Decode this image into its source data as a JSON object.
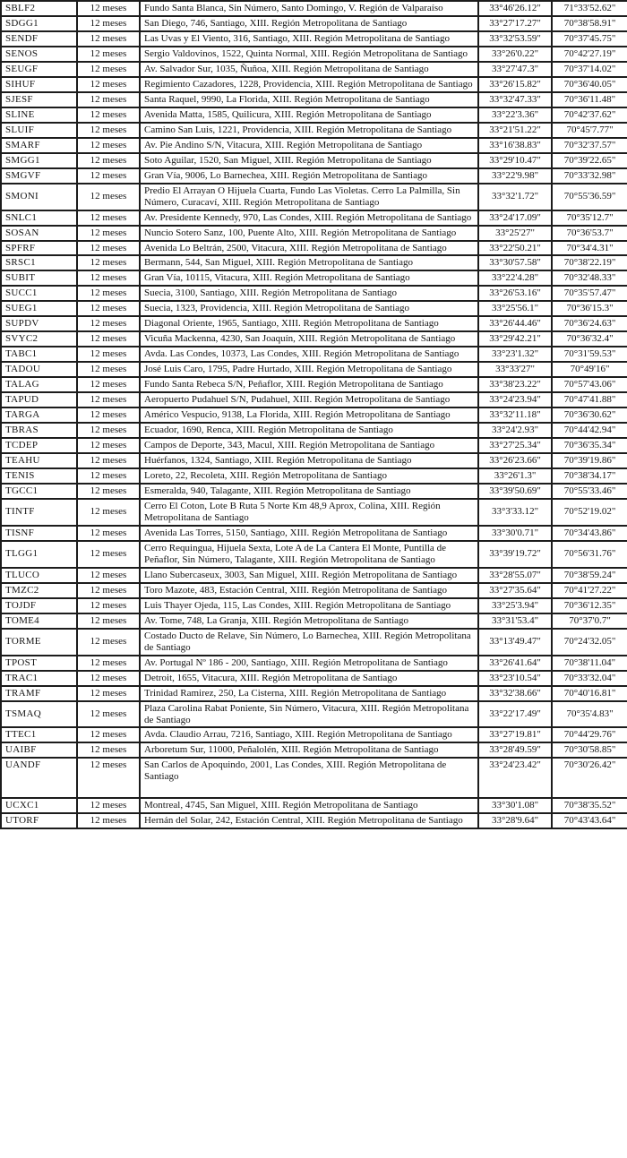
{
  "table": {
    "rows": [
      {
        "code": "SBLF2",
        "period": "12 meses",
        "address": "Fundo Santa Blanca, Sin Número, Santo Domingo, V. Región de Valparaíso",
        "latitude": "33°46'26.12\"",
        "longitude": "71°33'52.62\""
      },
      {
        "code": "SDGG1",
        "period": "12 meses",
        "address": "San Diego, 746, Santiago, XIII. Región Metropolitana de Santiago",
        "latitude": "33°27'17.27\"",
        "longitude": "70°38'58.91\""
      },
      {
        "code": "SENDF",
        "period": "12 meses",
        "address": "Las Uvas y El Viento, 316, Santiago, XIII. Región Metropolitana de Santiago",
        "latitude": "33°32'53.59\"",
        "longitude": "70°37'45.75\""
      },
      {
        "code": "SENOS",
        "period": "12 meses",
        "address": "Sergio Valdovinos, 1522, Quinta Normal, XIII. Región Metropolitana de Santiago",
        "latitude": "33°26'0.22\"",
        "longitude": "70°42'27.19\""
      },
      {
        "code": "SEUGF",
        "period": "12 meses",
        "address": "Av. Salvador Sur, 1035, Ñuñoa, XIII. Región Metropolitana de Santiago",
        "latitude": "33°27'47.3\"",
        "longitude": "70°37'14.02\""
      },
      {
        "code": "SIHUF",
        "period": "12 meses",
        "address": "Regimiento Cazadores, 1228, Providencia, XIII. Región Metropolitana de Santiago",
        "latitude": "33°26'15.82\"",
        "longitude": "70°36'40.05\""
      },
      {
        "code": "SJESF",
        "period": "12 meses",
        "address": "Santa Raquel, 9990, La Florida, XIII. Región Metropolitana de Santiago",
        "latitude": "33°32'47.33\"",
        "longitude": "70°36'11.48\""
      },
      {
        "code": "SLINE",
        "period": "12 meses",
        "address": "Avenida Matta, 1585, Quilicura, XIII. Región Metropolitana de Santiago",
        "latitude": "33°22'3.36\"",
        "longitude": "70°42'37.62\""
      },
      {
        "code": "SLUIF",
        "period": "12 meses",
        "address": "Camino San Luis, 1221, Providencia, XIII. Región Metropolitana de Santiago",
        "latitude": "33°21'51.22\"",
        "longitude": "70°45'7.77\""
      },
      {
        "code": "SMARF",
        "period": "12 meses",
        "address": "Av. Pie Andino S/N, Vitacura, XIII. Región Metropolitana de Santiago",
        "latitude": "33°16'38.83\"",
        "longitude": "70°32'37.57\""
      },
      {
        "code": "SMGG1",
        "period": "12 meses",
        "address": "Soto Aguilar, 1520, San Miguel, XIII. Región Metropolitana de Santiago",
        "latitude": "33°29'10.47\"",
        "longitude": "70°39'22.65\""
      },
      {
        "code": "SMGVF",
        "period": "12 meses",
        "address": "Gran Vía, 9006, Lo Barnechea, XIII. Región Metropolitana de Santiago",
        "latitude": "33°22'9.98\"",
        "longitude": "70°33'32.98\""
      },
      {
        "code": "SMONI",
        "period": "12 meses",
        "address": "Predio El Arrayan O Hijuela Cuarta, Fundo Las Violetas. Cerro La Palmilla, Sin Número, Curacaví, XIII. Región Metropolitana de Santiago",
        "latitude": "33°32'1.72\"",
        "longitude": "70°55'36.59\""
      },
      {
        "code": "SNLC1",
        "period": "12 meses",
        "address": "Av. Presidente Kennedy, 970, Las Condes, XIII. Región Metropolitana de Santiago",
        "latitude": "33°24'17.09\"",
        "longitude": "70°35'12.7\""
      },
      {
        "code": "SOSAN",
        "period": "12 meses",
        "address": "Nuncio Sotero Sanz, 100, Puente Alto, XIII. Región Metropolitana de Santiago",
        "latitude": "33°25'27\"",
        "longitude": "70°36'53.7\""
      },
      {
        "code": "SPFRF",
        "period": "12 meses",
        "address": "Avenida Lo Beltrán, 2500, Vitacura, XIII. Región Metropolitana de Santiago",
        "latitude": "33°22'50.21\"",
        "longitude": "70°34'4.31\""
      },
      {
        "code": "SRSC1",
        "period": "12 meses",
        "address": "Bermann, 544, San Miguel, XIII. Región Metropolitana de Santiago",
        "latitude": "33°30'57.58\"",
        "longitude": "70°38'22.19\""
      },
      {
        "code": "SUBIT",
        "period": "12 meses",
        "address": "Gran Vía, 10115, Vitacura, XIII. Región Metropolitana de Santiago",
        "latitude": "33°22'4.28\"",
        "longitude": "70°32'48.33\""
      },
      {
        "code": "SUCC1",
        "period": "12 meses",
        "address": "Suecia, 3100, Santiago, XIII. Región Metropolitana de Santiago",
        "latitude": "33°26'53.16\"",
        "longitude": "70°35'57.47\""
      },
      {
        "code": "SUEG1",
        "period": "12 meses",
        "address": "Suecia, 1323, Providencia, XIII. Región Metropolitana de Santiago",
        "latitude": "33°25'56.1\"",
        "longitude": "70°36'15.3\""
      },
      {
        "code": "SUPDV",
        "period": "12 meses",
        "address": "Diagonal Oriente, 1965, Santiago, XIII. Región Metropolitana de Santiago",
        "latitude": "33°26'44.46\"",
        "longitude": "70°36'24.63\""
      },
      {
        "code": "SVYC2",
        "period": "12 meses",
        "address": "Vicuña Mackenna, 4230, San Joaquín, XIII. Región Metropolitana de Santiago",
        "latitude": "33°29'42.21\"",
        "longitude": "70°36'32.4\""
      },
      {
        "code": "TABC1",
        "period": "12 meses",
        "address": "Avda. Las Condes, 10373, Las Condes, XIII. Región Metropolitana de Santiago",
        "latitude": "33°23'1.32\"",
        "longitude": "70°31'59.53\""
      },
      {
        "code": "TADOU",
        "period": "12 meses",
        "address": "José Luis Caro, 1795, Padre Hurtado, XIII. Región Metropolitana de Santiago",
        "latitude": "33°33'27\"",
        "longitude": "70°49'16\""
      },
      {
        "code": "TALAG",
        "period": "12 meses",
        "address": "Fundo Santa Rebeca S/N, Peñaflor, XIII. Región Metropolitana de Santiago",
        "latitude": "33°38'23.22\"",
        "longitude": "70°57'43.06\""
      },
      {
        "code": "TAPUD",
        "period": "12 meses",
        "address": "Aeropuerto Pudahuel S/N, Pudahuel, XIII. Región Metropolitana de Santiago",
        "latitude": "33°24'23.94\"",
        "longitude": "70°47'41.88\""
      },
      {
        "code": "TARGA",
        "period": "12 meses",
        "address": "Américo Vespucio, 9138, La Florida, XIII. Región Metropolitana de Santiago",
        "latitude": "33°32'11.18\"",
        "longitude": "70°36'30.62\""
      },
      {
        "code": "TBRAS",
        "period": "12 meses",
        "address": "Ecuador, 1690, Renca, XIII. Región Metropolitana de Santiago",
        "latitude": "33°24'2.93\"",
        "longitude": "70°44'42.94\""
      },
      {
        "code": "TCDEP",
        "period": "12 meses",
        "address": "Campos de Deporte, 343, Macul, XIII. Región Metropolitana de Santiago",
        "latitude": "33°27'25.34\"",
        "longitude": "70°36'35.34\""
      },
      {
        "code": "TEAHU",
        "period": "12 meses",
        "address": "Huérfanos, 1324, Santiago, XIII. Región Metropolitana de Santiago",
        "latitude": "33°26'23.66\"",
        "longitude": "70°39'19.86\""
      },
      {
        "code": "TENIS",
        "period": "12 meses",
        "address": "Loreto, 22, Recoleta, XIII. Región Metropolitana de Santiago",
        "latitude": "33°26'1.3\"",
        "longitude": "70°38'34.17\""
      },
      {
        "code": "TGCC1",
        "period": "12 meses",
        "address": "Esmeralda, 940, Talagante, XIII. Región Metropolitana de Santiago",
        "latitude": "33°39'50.69\"",
        "longitude": "70°55'33.46\""
      },
      {
        "code": "TINTF",
        "period": "12 meses",
        "address": "Cerro El Coton, Lote B Ruta 5 Norte Km 48,9 Aprox, Colina, XIII. Región Metropolitana de Santiago",
        "latitude": "33°3'33.12\"",
        "longitude": "70°52'19.02\""
      },
      {
        "code": "TISNF",
        "period": "12 meses",
        "address": "Avenida Las Torres, 5150, Santiago, XIII. Región Metropolitana de Santiago",
        "latitude": "33°30'0.71\"",
        "longitude": "70°34'43.86\""
      },
      {
        "code": "TLGG1",
        "period": "12 meses",
        "address": "Cerro Requingua, Hijuela Sexta, Lote A de La Cantera El Monte, Puntilla de Peñaflor, Sin Número, Talagante, XIII. Región Metropolitana de Santiago",
        "latitude": "33°39'19.72\"",
        "longitude": "70°56'31.76\""
      },
      {
        "code": "TLUCO",
        "period": "12 meses",
        "address": "Llano Subercaseux, 3003, San Miguel, XIII. Región Metropolitana de Santiago",
        "latitude": "33°28'55.07\"",
        "longitude": "70°38'59.24\""
      },
      {
        "code": "TMZC2",
        "period": "12 meses",
        "address": "Toro Mazote, 483, Estación Central, XIII. Región Metropolitana de Santiago",
        "latitude": "33°27'35.64\"",
        "longitude": "70°41'27.22\""
      },
      {
        "code": "TOJDF",
        "period": "12 meses",
        "address": "Luis Thayer Ojeda, 115, Las Condes, XIII. Región Metropolitana de Santiago",
        "latitude": "33°25'3.94\"",
        "longitude": "70°36'12.35\""
      },
      {
        "code": "TOME4",
        "period": "12 meses",
        "address": "Av. Tome, 748, La Granja, XIII. Región Metropolitana de Santiago",
        "latitude": "33°31'53.4\"",
        "longitude": "70°37'0.7\""
      },
      {
        "code": "TORME",
        "period": "12 meses",
        "address": "Costado Ducto de Relave, Sin Número, Lo Barnechea, XIII. Región Metropolitana de Santiago",
        "latitude": "33°13'49.47\"",
        "longitude": "70°24'32.05\""
      },
      {
        "code": "TPOST",
        "period": "12 meses",
        "address": "Av. Portugal Nº 186 - 200, Santiago, XIII. Región Metropolitana de Santiago",
        "latitude": "33°26'41.64\"",
        "longitude": "70°38'11.04\""
      },
      {
        "code": "TRAC1",
        "period": "12 meses",
        "address": "Detroit, 1655, Vitacura, XIII. Región Metropolitana de Santiago",
        "latitude": "33°23'10.54\"",
        "longitude": "70°33'32.04\""
      },
      {
        "code": "TRAMF",
        "period": "12 meses",
        "address": "Trinidad Ramirez, 250, La Cisterna, XIII. Región Metropolitana de Santiago",
        "latitude": "33°32'38.66\"",
        "longitude": "70°40'16.81\""
      },
      {
        "code": "TSMAQ",
        "period": "12 meses",
        "address": "Plaza Carolina Rabat Poniente, Sin Número, Vitacura, XIII. Región Metropolitana de Santiago",
        "latitude": "33°22'17.49\"",
        "longitude": "70°35'4.83\""
      },
      {
        "code": "TTEC1",
        "period": "12 meses",
        "address": "Avda. Claudio Arrau, 7216, Santiago, XIII. Región Metropolitana de Santiago",
        "latitude": "33°27'19.81\"",
        "longitude": "70°44'29.76\""
      },
      {
        "code": "UAIBF",
        "period": "12 meses",
        "address": "Arboretum Sur, 11000, Peñalolén, XIII. Región Metropolitana de Santiago",
        "latitude": "33°28'49.59\"",
        "longitude": "70°30'58.85\""
      },
      {
        "code": "UANDF",
        "period": "12 meses",
        "address": "San Carlos de Apoquindo, 2001, Las Condes, XIII. Región Metropolitana de Santiago",
        "latitude": "33°24'23.42\"",
        "longitude": "70°30'26.42\""
      },
      {
        "code": "UCXC1",
        "period": "12 meses",
        "address": "Montreal, 4745, San Miguel, XIII. Región Metropolitana de Santiago",
        "latitude": "33°30'1.08\"",
        "longitude": "70°38'35.52\""
      },
      {
        "code": "UTORF",
        "period": "12 meses",
        "address": "Hernán del Solar, 242, Estación Central, XIII. Región Metropolitana de Santiago",
        "latitude": "33°28'9.64\"",
        "longitude": "70°43'43.64\""
      }
    ]
  }
}
